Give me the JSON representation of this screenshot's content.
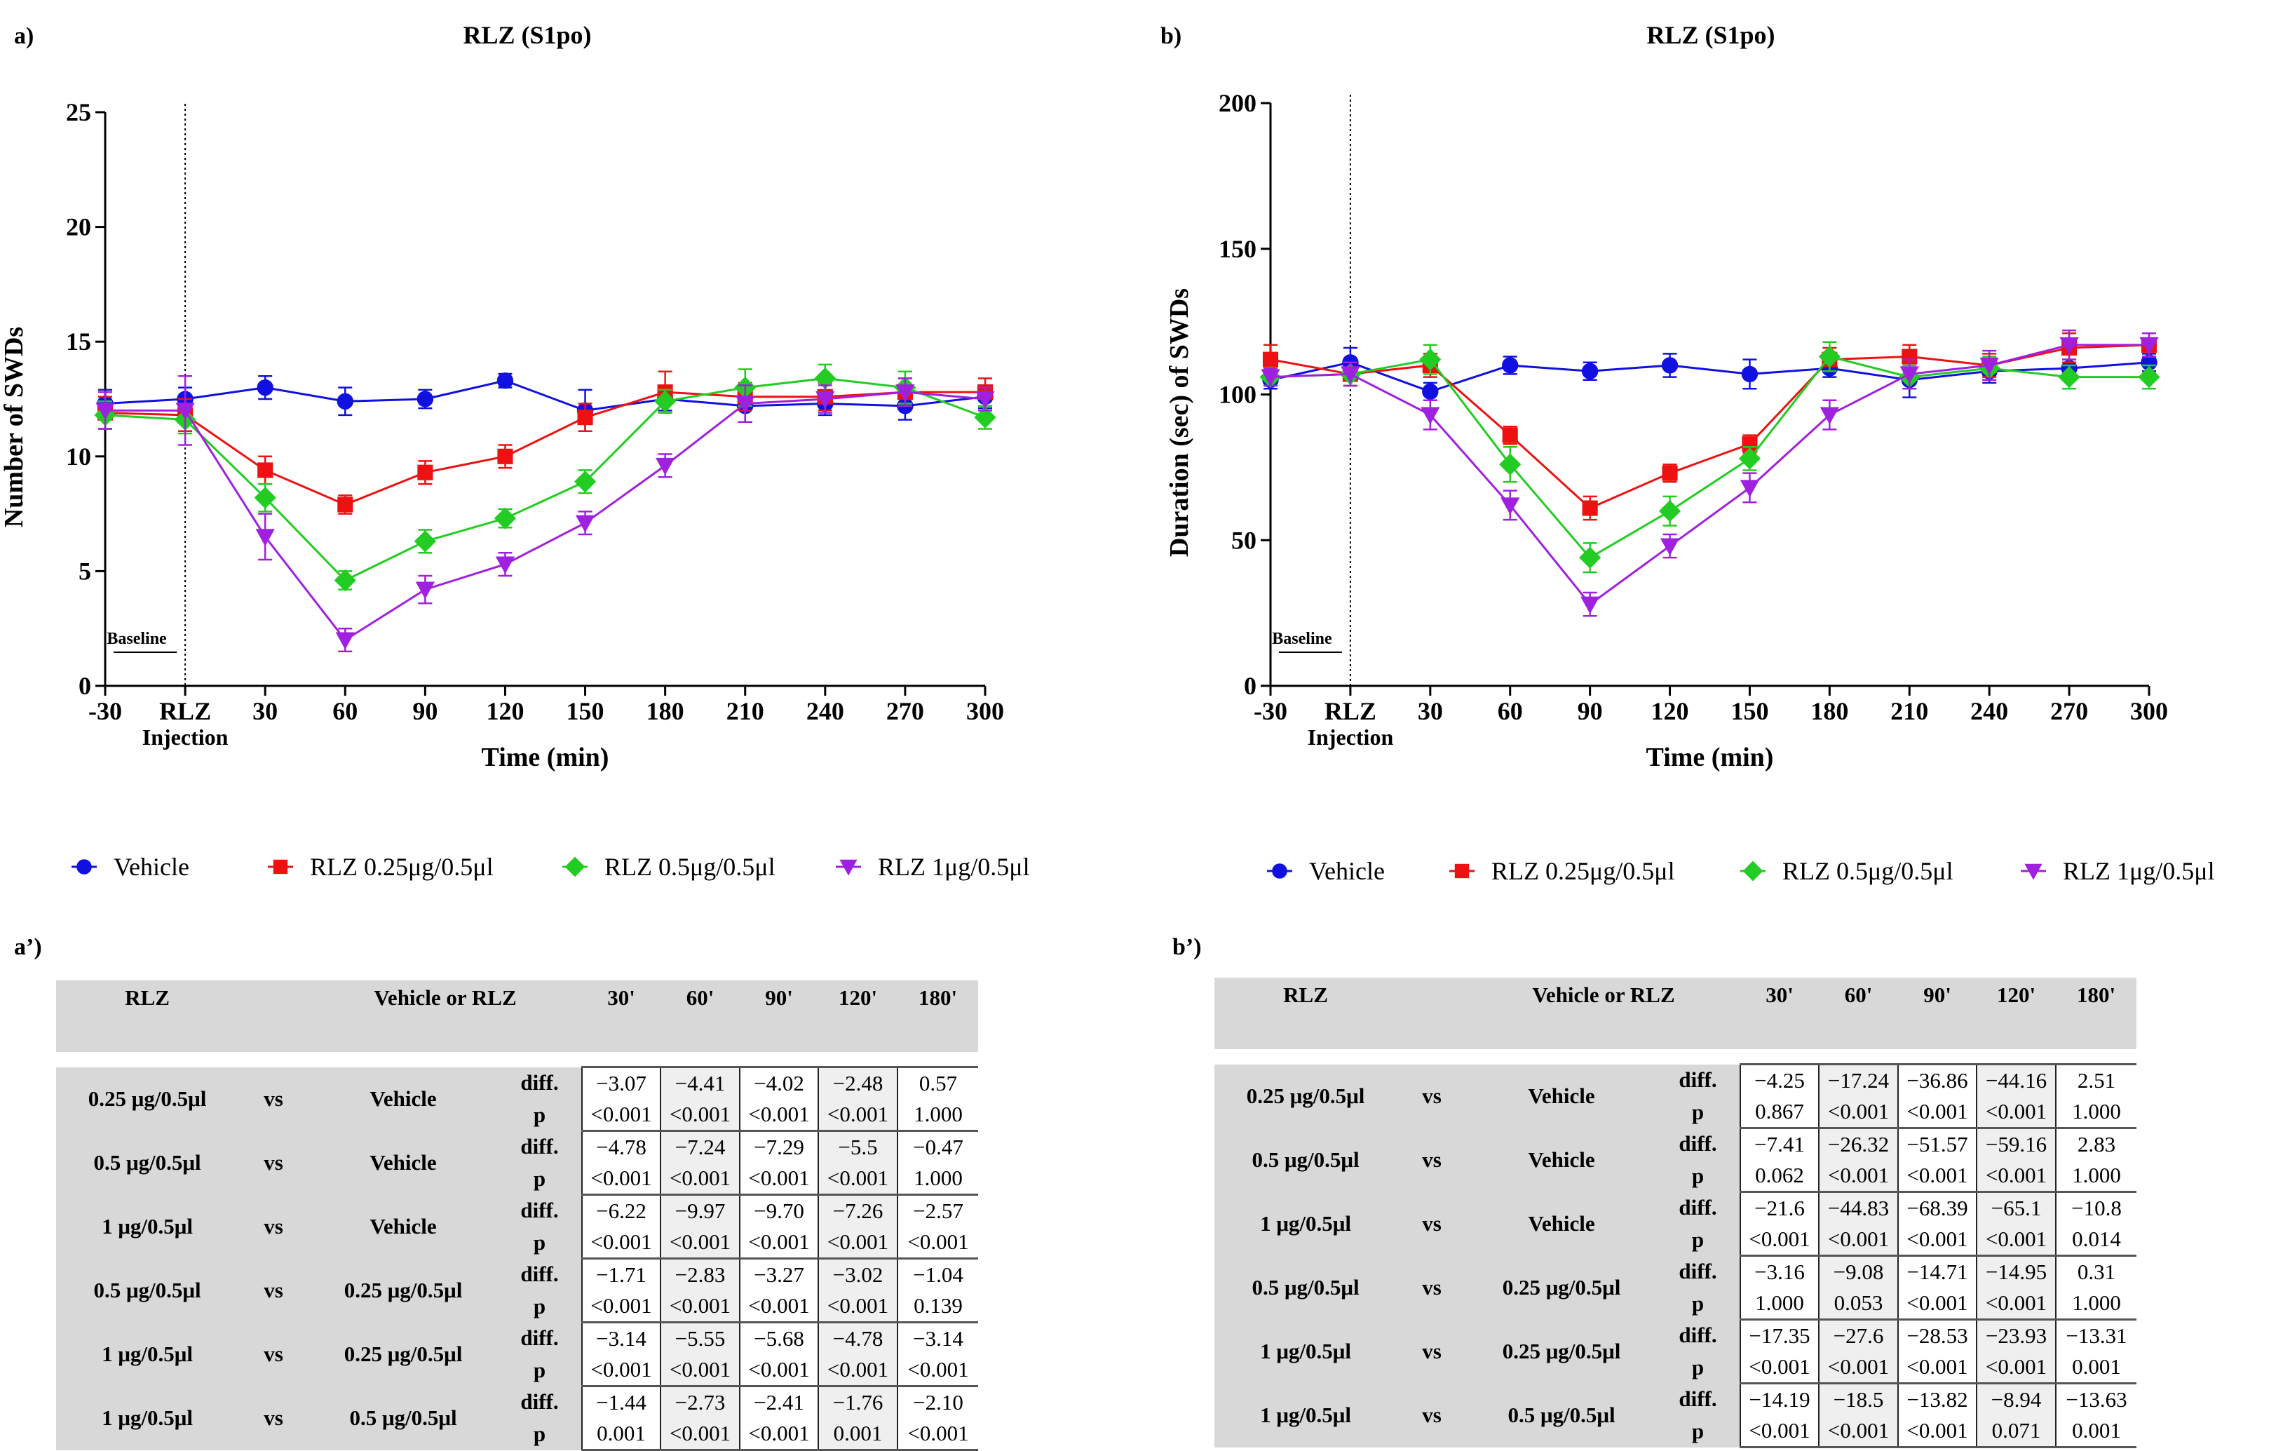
{
  "chart_data": [
    {
      "type": "line",
      "panel_label": "a)",
      "title": "RLZ (S1po)",
      "xlabel": "Time (min)",
      "ylabel": "Number of SWDs",
      "ylim": [
        0,
        25
      ],
      "yticks": [
        "0",
        "5",
        "10",
        "15",
        "20",
        "25"
      ],
      "x": [
        -30,
        0,
        30,
        60,
        90,
        120,
        150,
        180,
        210,
        240,
        270,
        300
      ],
      "xticklabels": [
        "-30",
        "RLZ",
        "30",
        "60",
        "90",
        "120",
        "150",
        "180",
        "210",
        "240",
        "270",
        "300"
      ],
      "xtick_sublabel": "Injection",
      "baseline_label": "Baseline",
      "series": [
        {
          "name": "Vehicle",
          "color": "#1010e0",
          "marker": "circle",
          "values": [
            12.3,
            12.5,
            13.0,
            12.4,
            12.5,
            13.3,
            12.0,
            12.5,
            12.2,
            12.3,
            12.2,
            12.6
          ],
          "errors": [
            0.6,
            0.5,
            0.5,
            0.6,
            0.4,
            0.3,
            0.9,
            0.5,
            0.7,
            0.5,
            0.6,
            0.5
          ]
        },
        {
          "name": "RLZ 0.25μg/0.5μl",
          "color": "#ee1111",
          "marker": "square",
          "values": [
            11.9,
            11.8,
            9.4,
            7.9,
            9.3,
            10.0,
            11.7,
            12.8,
            12.6,
            12.6,
            12.8,
            12.8
          ],
          "errors": [
            0.7,
            0.7,
            0.6,
            0.4,
            0.5,
            0.5,
            0.6,
            0.9,
            0.6,
            0.6,
            0.6,
            0.6
          ]
        },
        {
          "name": "RLZ 0.5μg/0.5μl",
          "color": "#22cc22",
          "marker": "diamond",
          "values": [
            11.8,
            11.6,
            8.2,
            4.6,
            6.3,
            7.3,
            8.9,
            12.4,
            13.0,
            13.4,
            13.0,
            11.7
          ],
          "errors": [
            0.6,
            0.6,
            0.6,
            0.4,
            0.5,
            0.4,
            0.5,
            0.5,
            0.8,
            0.6,
            0.7,
            0.5
          ]
        },
        {
          "name": "RLZ 1μg/0.5μl",
          "color": "#a020e0",
          "marker": "triangle-down",
          "values": [
            12.0,
            12.0,
            6.5,
            2.0,
            4.2,
            5.3,
            7.1,
            9.6,
            12.3,
            12.5,
            12.8,
            12.5
          ],
          "errors": [
            0.8,
            1.5,
            1.0,
            0.5,
            0.6,
            0.5,
            0.5,
            0.5,
            0.8,
            0.6,
            0.6,
            0.5
          ]
        }
      ]
    },
    {
      "type": "line",
      "panel_label": "b)",
      "title": "RLZ (S1po)",
      "xlabel": "Time (min)",
      "ylabel": "Duration (sec) of SWDs",
      "ylim": [
        0,
        200
      ],
      "yticks": [
        "0",
        "50",
        "100",
        "150",
        "200"
      ],
      "x": [
        -30,
        0,
        30,
        60,
        90,
        120,
        150,
        180,
        210,
        240,
        270,
        300
      ],
      "xticklabels": [
        "-30",
        "RLZ",
        "30",
        "60",
        "90",
        "120",
        "150",
        "180",
        "210",
        "240",
        "270",
        "300"
      ],
      "xtick_sublabel": "Injection",
      "baseline_label": "Baseline",
      "series": [
        {
          "name": "Vehicle",
          "color": "#1010e0",
          "marker": "circle",
          "values": [
            105,
            111,
            101,
            110,
            108,
            110,
            107,
            109,
            105,
            108,
            109,
            111
          ],
          "errors": [
            3,
            5,
            3,
            3,
            3,
            4,
            5,
            3,
            6,
            4,
            3,
            3
          ]
        },
        {
          "name": "RLZ 0.25μg/0.5μl",
          "color": "#ee1111",
          "marker": "square",
          "values": [
            112,
            107,
            110,
            86,
            61,
            73,
            83,
            112,
            113,
            110,
            116,
            117
          ],
          "errors": [
            5,
            4,
            4,
            3,
            4,
            3,
            3,
            4,
            4,
            4,
            5,
            4
          ]
        },
        {
          "name": "RLZ 0.5μg/0.5μl",
          "color": "#22cc22",
          "marker": "diamond",
          "values": [
            106,
            107,
            112,
            76,
            44,
            60,
            78,
            113,
            106,
            109,
            106,
            106
          ],
          "errors": [
            3,
            4,
            5,
            6,
            5,
            5,
            4,
            5,
            4,
            4,
            4,
            4
          ]
        },
        {
          "name": "RLZ 1μg/0.5μl",
          "color": "#a020e0",
          "marker": "triangle-down",
          "values": [
            106,
            107,
            93,
            62,
            28,
            48,
            68,
            93,
            107,
            110,
            117,
            117
          ],
          "errors": [
            3,
            4,
            5,
            5,
            4,
            4,
            5,
            5,
            5,
            5,
            5,
            4
          ]
        }
      ]
    }
  ],
  "tables": [
    {
      "panel_label": "a’)",
      "header": [
        "RLZ",
        "Vehicle or RLZ",
        "30'",
        "60'",
        "90'",
        "120'",
        "180'"
      ],
      "rows": [
        {
          "group": "0.25 μg/0.5μl",
          "vs": "vs",
          "comp": "Vehicle",
          "diff_label": "diff.",
          "p_label": "p",
          "diff": [
            "−3.07",
            "−4.41",
            "−4.02",
            "−2.48",
            "0.57"
          ],
          "p": [
            "<0.001",
            "<0.001",
            "<0.001",
            "<0.001",
            "1.000"
          ]
        },
        {
          "group": "0.5 μg/0.5μl",
          "vs": "vs",
          "comp": "Vehicle",
          "diff_label": "diff.",
          "p_label": "p",
          "diff": [
            "−4.78",
            "−7.24",
            "−7.29",
            "−5.5",
            "−0.47"
          ],
          "p": [
            "<0.001",
            "<0.001",
            "<0.001",
            "<0.001",
            "1.000"
          ]
        },
        {
          "group": "1 μg/0.5μl",
          "vs": "vs",
          "comp": "Vehicle",
          "diff_label": "diff.",
          "p_label": "p",
          "diff": [
            "−6.22",
            "−9.97",
            "−9.70",
            "−7.26",
            "−2.57"
          ],
          "p": [
            "<0.001",
            "<0.001",
            "<0.001",
            "<0.001",
            "<0.001"
          ]
        },
        {
          "group": "0.5 μg/0.5μl",
          "vs": "vs",
          "comp": "0.25 μg/0.5μl",
          "diff_label": "diff.",
          "p_label": "p",
          "diff": [
            "−1.71",
            "−2.83",
            "−3.27",
            "−3.02",
            "−1.04"
          ],
          "p": [
            "<0.001",
            "<0.001",
            "<0.001",
            "<0.001",
            "0.139"
          ]
        },
        {
          "group": "1 μg/0.5μl",
          "vs": "vs",
          "comp": "0.25 μg/0.5μl",
          "diff_label": "diff.",
          "p_label": "p",
          "diff": [
            "−3.14",
            "−5.55",
            "−5.68",
            "−4.78",
            "−3.14"
          ],
          "p": [
            "<0.001",
            "<0.001",
            "<0.001",
            "<0.001",
            "<0.001"
          ]
        },
        {
          "group": "1 μg/0.5μl",
          "vs": "vs",
          "comp": "0.5 μg/0.5μl",
          "diff_label": "diff.",
          "p_label": "p",
          "diff": [
            "−1.44",
            "−2.73",
            "−2.41",
            "−1.76",
            "−2.10"
          ],
          "p": [
            "0.001",
            "<0.001",
            "<0.001",
            "0.001",
            "<0.001"
          ]
        }
      ]
    },
    {
      "panel_label": "b’)",
      "header": [
        "RLZ",
        "Vehicle or RLZ",
        "30'",
        "60'",
        "90'",
        "120'",
        "180'"
      ],
      "rows": [
        {
          "group": "0.25 μg/0.5μl",
          "vs": "vs",
          "comp": "Vehicle",
          "diff_label": "diff.",
          "p_label": "p",
          "diff": [
            "−4.25",
            "−17.24",
            "−36.86",
            "−44.16",
            "2.51"
          ],
          "p": [
            "0.867",
            "<0.001",
            "<0.001",
            "<0.001",
            "1.000"
          ]
        },
        {
          "group": "0.5 μg/0.5μl",
          "vs": "vs",
          "comp": "Vehicle",
          "diff_label": "diff.",
          "p_label": "p",
          "diff": [
            "−7.41",
            "−26.32",
            "−51.57",
            "−59.16",
            "2.83"
          ],
          "p": [
            "0.062",
            "<0.001",
            "<0.001",
            "<0.001",
            "1.000"
          ]
        },
        {
          "group": "1 μg/0.5μl",
          "vs": "vs",
          "comp": "Vehicle",
          "diff_label": "diff.",
          "p_label": "p",
          "diff": [
            "−21.6",
            "−44.83",
            "−68.39",
            "−65.1",
            "−10.8"
          ],
          "p": [
            "<0.001",
            "<0.001",
            "<0.001",
            "<0.001",
            "0.014"
          ]
        },
        {
          "group": "0.5 μg/0.5μl",
          "vs": "vs",
          "comp": "0.25 μg/0.5μl",
          "diff_label": "diff.",
          "p_label": "p",
          "diff": [
            "−3.16",
            "−9.08",
            "−14.71",
            "−14.95",
            "0.31"
          ],
          "p": [
            "1.000",
            "0.053",
            "<0.001",
            "<0.001",
            "1.000"
          ]
        },
        {
          "group": "1 μg/0.5μl",
          "vs": "vs",
          "comp": "0.25 μg/0.5μl",
          "diff_label": "diff.",
          "p_label": "p",
          "diff": [
            "−17.35",
            "−27.6",
            "−28.53",
            "−23.93",
            "−13.31"
          ],
          "p": [
            "<0.001",
            "<0.001",
            "<0.001",
            "<0.001",
            "0.001"
          ]
        },
        {
          "group": "1 μg/0.5μl",
          "vs": "vs",
          "comp": "0.5 μg/0.5μl",
          "diff_label": "diff.",
          "p_label": "p",
          "diff": [
            "−14.19",
            "−18.5",
            "−13.82",
            "−8.94",
            "−13.63"
          ],
          "p": [
            "<0.001",
            "<0.001",
            "<0.001",
            "0.071",
            "0.001"
          ]
        }
      ]
    }
  ]
}
